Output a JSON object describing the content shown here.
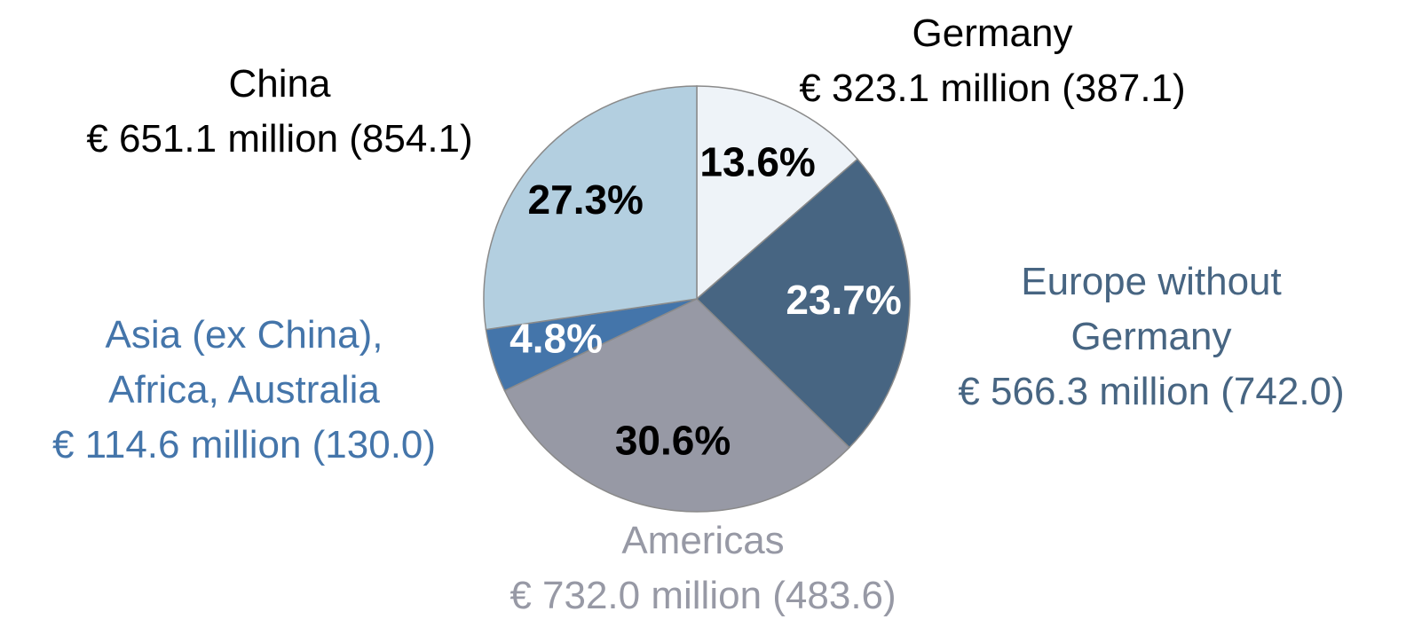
{
  "chart_data": {
    "type": "pie",
    "categories": [
      "Germany",
      "Europe without Germany",
      "Americas",
      "Asia (ex China), Africa, Australia",
      "China"
    ],
    "values": [
      13.6,
      23.7,
      30.6,
      4.8,
      27.3
    ],
    "value_labels": [
      "13.6%",
      "23.7%",
      "30.6%",
      "4.8%",
      "27.3%"
    ],
    "details": [
      "€ 323.1 million (387.1)",
      "€ 566.3 million (742.0)",
      "€ 732.0 million (483.6)",
      "€ 114.6 million (130.0)",
      "€ 651.1 million (854.1)"
    ],
    "colors": [
      "#eef3f8",
      "#476582",
      "#9799a5",
      "#4475aa",
      "#b3cfe0"
    ],
    "value_label_colors": [
      "#000000",
      "#ffffff",
      "#000000",
      "#ffffff",
      "#000000"
    ],
    "name_colors": [
      "#000000",
      "#476582",
      "#9799a5",
      "#4475aa",
      "#000000"
    ]
  }
}
